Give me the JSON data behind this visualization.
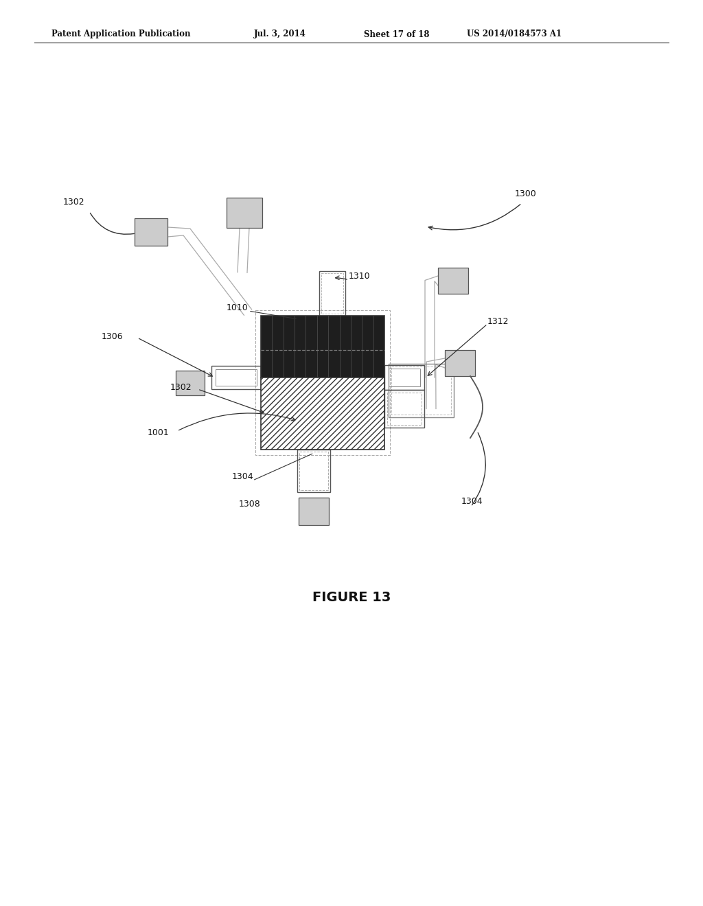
{
  "background_color": "#ffffff",
  "header_text": "Patent Application Publication",
  "header_date": "Jul. 3, 2014",
  "header_sheet": "Sheet 17 of 18",
  "header_patent": "US 2014/0184573 A1",
  "figure_label": "FIGURE 13",
  "line_color": "#555555",
  "light_gray": "#cccccc",
  "dark_block": "#1e1e1e",
  "medium_gray": "#888888"
}
